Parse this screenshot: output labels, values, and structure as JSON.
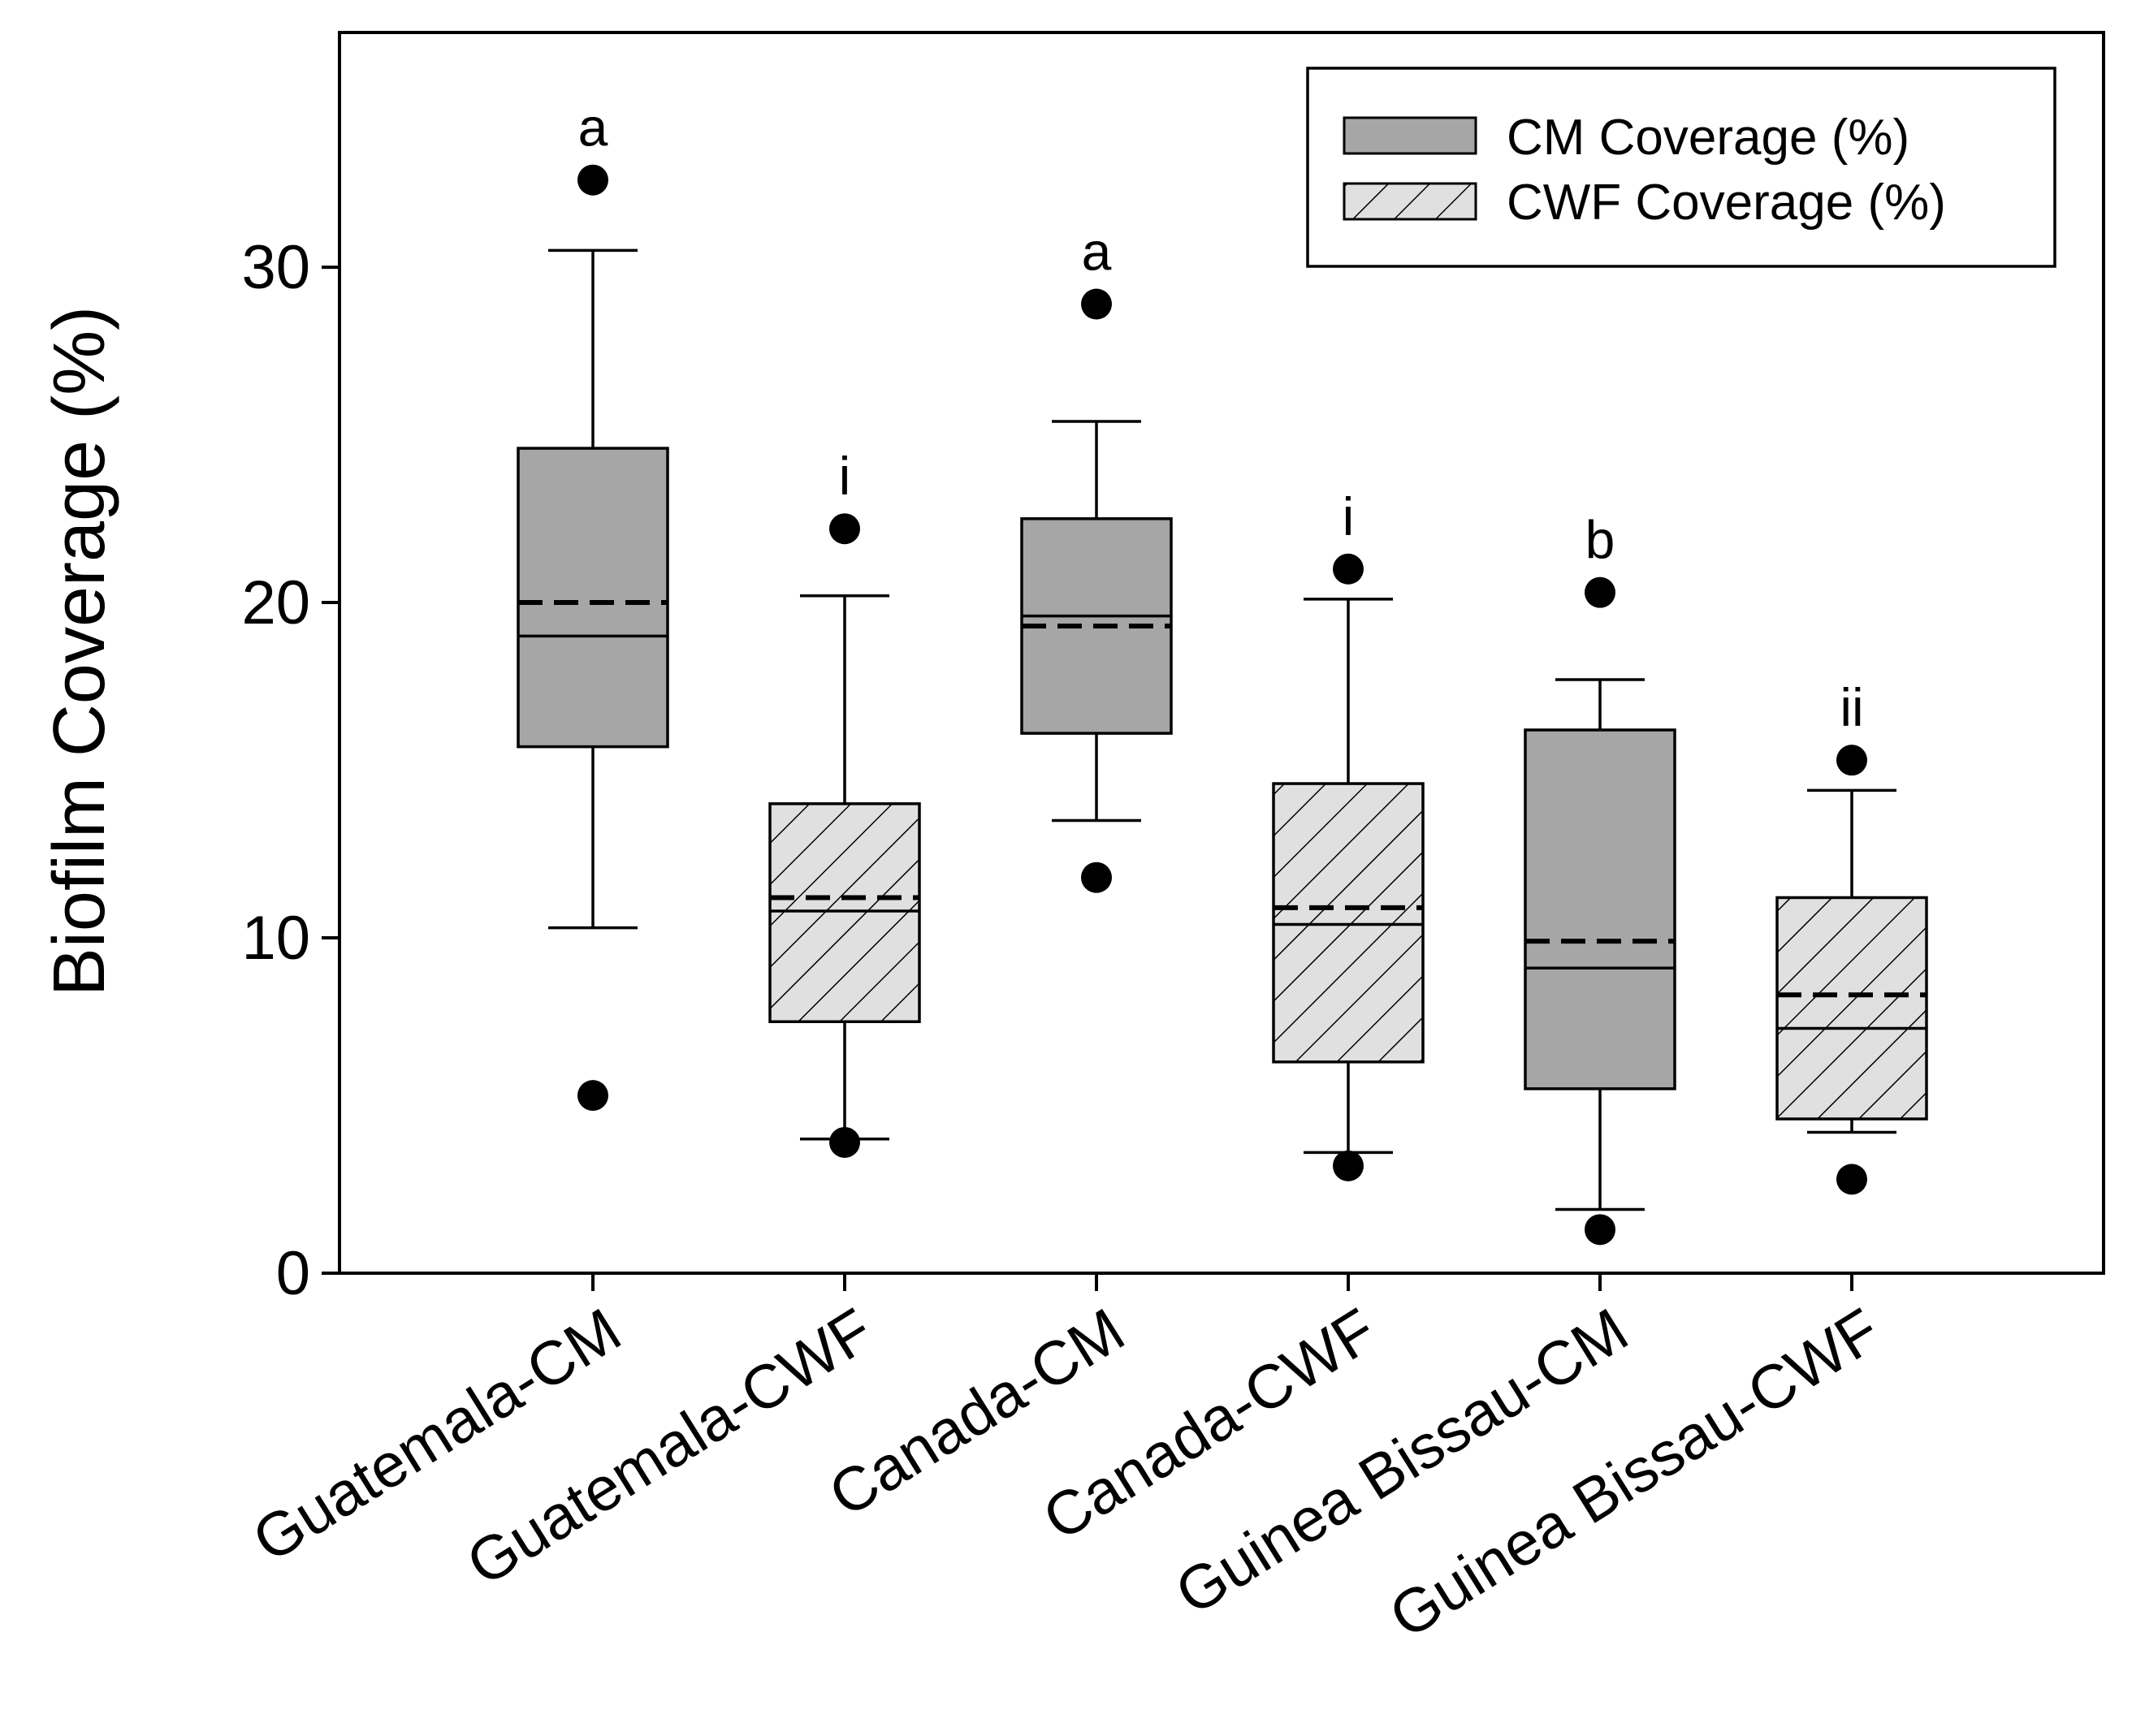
{
  "chart_data": {
    "type": "boxplot",
    "ylabel": "Biofilm Coverage (%)",
    "xlabel": "",
    "ylim": [
      0,
      37
    ],
    "yticks": [
      0,
      10,
      20,
      30
    ],
    "grid": false,
    "legend": {
      "placement": "top-right",
      "entries": [
        {
          "label": "CM Coverage (%)",
          "style": "solid"
        },
        {
          "label": "CWF Coverage (%)",
          "style": "hatched"
        }
      ]
    },
    "colors": {
      "cm_fill": "#a6a6a6",
      "cwf_fill": "#e0e0e0",
      "stroke": "#000000"
    },
    "categories": [
      "Guatemala-CM",
      "Guatemala-CWF",
      "Canada-CM",
      "Canada-CWF",
      "Guinea Bissau-CM",
      "Guinea Bissau-CWF"
    ],
    "boxes": [
      {
        "category": "Guatemala-CM",
        "style": "solid",
        "whisker_low": 10.3,
        "q1": 15.7,
        "median": 19.0,
        "mean": 20.0,
        "q3": 24.6,
        "whisker_high": 30.5,
        "outliers": [
          32.6,
          5.3
        ],
        "letter": "a"
      },
      {
        "category": "Guatemala-CWF",
        "style": "hatched",
        "whisker_low": 4.0,
        "q1": 7.5,
        "median": 10.8,
        "mean": 11.2,
        "q3": 14.0,
        "whisker_high": 20.2,
        "outliers": [
          22.2,
          3.9
        ],
        "letter": "i"
      },
      {
        "category": "Canada-CM",
        "style": "solid",
        "whisker_low": 13.5,
        "q1": 16.1,
        "median": 19.6,
        "mean": 19.3,
        "q3": 22.5,
        "whisker_high": 25.4,
        "outliers": [
          28.9,
          11.8
        ],
        "letter": "a"
      },
      {
        "category": "Canada-CWF",
        "style": "hatched",
        "whisker_low": 3.6,
        "q1": 6.3,
        "median": 10.4,
        "mean": 10.9,
        "q3": 14.6,
        "whisker_high": 20.1,
        "outliers": [
          21.0,
          3.2
        ],
        "letter": "i"
      },
      {
        "category": "Guinea Bissau-CM",
        "style": "solid",
        "whisker_low": 1.9,
        "q1": 5.5,
        "median": 9.1,
        "mean": 9.9,
        "q3": 16.2,
        "whisker_high": 17.7,
        "outliers": [
          20.3,
          1.3
        ],
        "letter": "b"
      },
      {
        "category": "Guinea Bissau-CWF",
        "style": "hatched",
        "whisker_low": 4.2,
        "q1": 4.6,
        "median": 7.3,
        "mean": 8.3,
        "q3": 11.2,
        "whisker_high": 14.4,
        "outliers": [
          15.3,
          2.8
        ],
        "letter": "ii"
      }
    ]
  }
}
